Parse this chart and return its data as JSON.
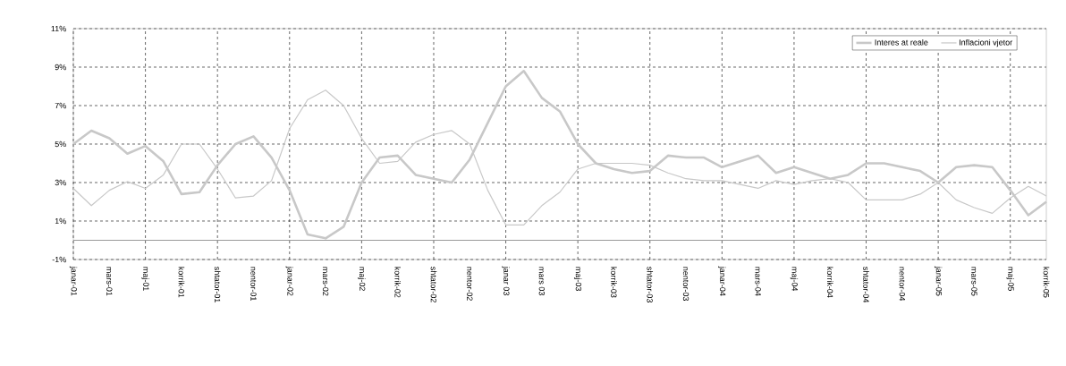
{
  "chart_data": {
    "type": "line",
    "categories": [
      "janar-01",
      null,
      "mars-01",
      null,
      "maj-01",
      null,
      "korrik-01",
      null,
      "shtator-01",
      null,
      "nentor-01",
      null,
      "janar-02",
      null,
      "mars-02",
      null,
      "maj-02",
      null,
      "korrik-02",
      null,
      "shtator-02",
      null,
      "nentor-02",
      null,
      "janar 03",
      null,
      "mars 03",
      null,
      "maj-03",
      null,
      "korrik-03",
      null,
      "shtator-03",
      null,
      "nentor-03",
      null,
      "janar-04",
      null,
      "mars-04",
      null,
      "maj-04",
      null,
      "korrik-04",
      null,
      "shtator-04",
      null,
      "nentor-04",
      null,
      "janar-05",
      null,
      "mars-05",
      null,
      "maj-05",
      null,
      "korrik-05"
    ],
    "series": [
      {
        "name": "Interes at reale",
        "color": "#c8c8c8",
        "values": [
          5.0,
          5.7,
          5.3,
          4.5,
          4.9,
          4.1,
          2.4,
          2.5,
          3.9,
          5.0,
          5.4,
          4.3,
          2.6,
          0.3,
          0.1,
          0.7,
          3.0,
          4.3,
          4.4,
          3.4,
          3.2,
          3.0,
          4.2,
          6.1,
          8.0,
          8.8,
          7.4,
          6.7,
          5.0,
          4.0,
          3.7,
          3.5,
          3.6,
          4.4,
          4.3,
          4.3,
          3.8,
          4.1,
          4.4,
          3.5,
          3.8,
          3.5,
          3.2,
          3.4,
          4.0,
          4.0,
          3.8,
          3.6,
          3.0,
          3.8,
          3.9,
          3.8,
          2.6,
          1.3,
          2.0
        ]
      },
      {
        "name": "Inflacioni vjetor",
        "color": "#c8c8c8",
        "values": [
          2.7,
          1.8,
          2.6,
          3.05,
          2.7,
          3.4,
          5.0,
          5.0,
          3.7,
          2.2,
          2.3,
          3.1,
          5.8,
          7.3,
          7.8,
          7.0,
          5.3,
          4.0,
          4.1,
          5.1,
          5.5,
          5.7,
          5.0,
          2.6,
          0.8,
          0.8,
          1.8,
          2.5,
          3.7,
          4.0,
          4.0,
          4.0,
          3.9,
          3.5,
          3.2,
          3.1,
          3.1,
          2.9,
          2.7,
          3.1,
          2.9,
          3.1,
          3.2,
          3.0,
          2.1,
          2.1,
          2.1,
          2.4,
          3.0,
          2.1,
          1.7,
          1.4,
          2.2,
          2.8,
          2.3
        ]
      }
    ],
    "ylim": [
      -1,
      11
    ],
    "yticks": [
      {
        "value": -1,
        "label": "-1%"
      },
      {
        "value": 1,
        "label": "1%"
      },
      {
        "value": 3,
        "label": "3%"
      },
      {
        "value": 5,
        "label": "5%"
      },
      {
        "value": 7,
        "label": "7%"
      },
      {
        "value": 9,
        "label": "9%"
      },
      {
        "value": 11,
        "label": "11%"
      }
    ],
    "ref_lines": [
      {
        "axis": "y",
        "value": 0,
        "color": "#808080"
      }
    ],
    "grid": true,
    "legend": "top right",
    "marker": "none",
    "line_style": "solid"
  }
}
